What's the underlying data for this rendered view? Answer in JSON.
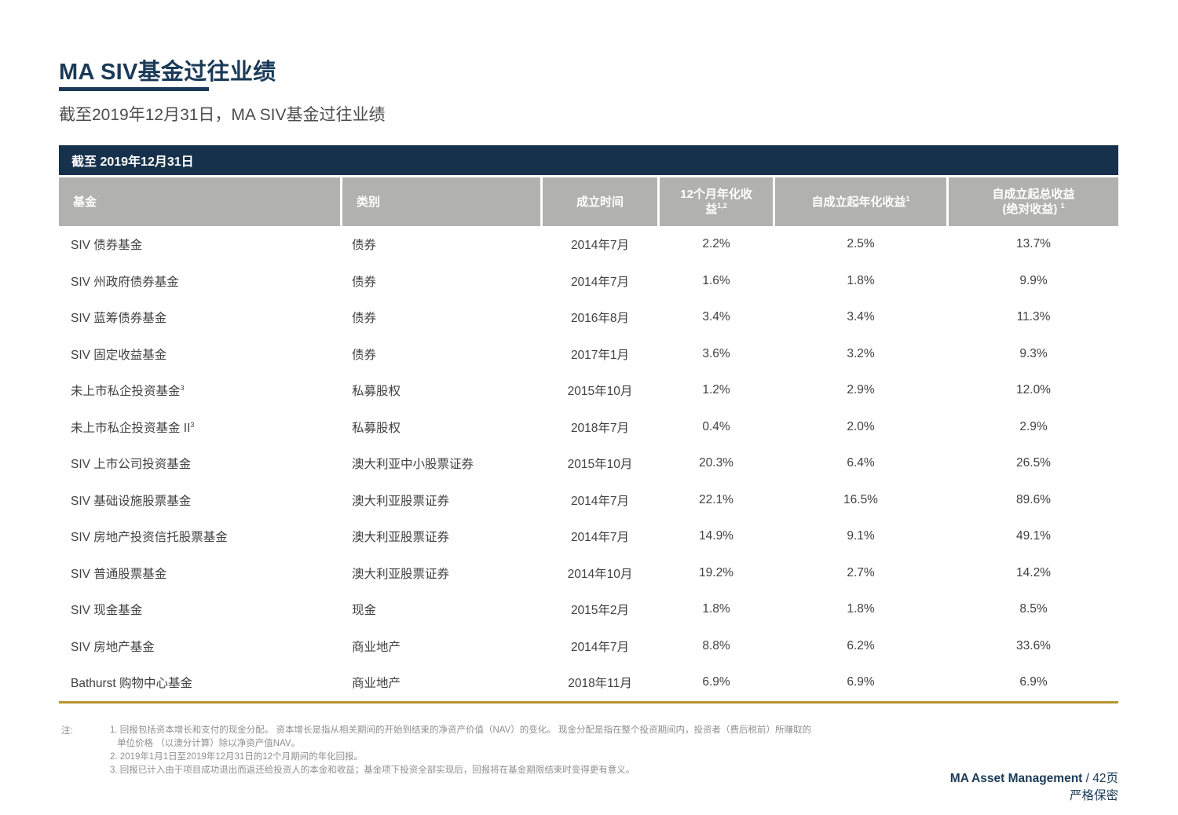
{
  "page": {
    "title": "MA SIV基金过往业绩",
    "subtitle": "截至2019年12月31日，MA SIV基金过往业绩"
  },
  "colors": {
    "navy": "#16314c",
    "header_gray": "#b1b1af",
    "gold_rule": "#b5952f",
    "body_text": "#414141"
  },
  "table": {
    "banner": "截至 2019年12月31日",
    "columns": [
      {
        "line1": "基金",
        "line2": "",
        "sup": ""
      },
      {
        "line1": "类别",
        "line2": "",
        "sup": ""
      },
      {
        "line1": "成立时间",
        "line2": "",
        "sup": ""
      },
      {
        "line1": "12个月年化收",
        "line2": "益",
        "sup": "1,2"
      },
      {
        "line1": "自成立起年化收益",
        "line2": "",
        "sup": "1"
      },
      {
        "line1": "自成立起总收益",
        "line2": "(绝对收益)",
        "sup": "1"
      }
    ],
    "rows": [
      {
        "fund": "SIV 债券基金",
        "fund_sup": "",
        "category": "债券",
        "inception": "2014年7月",
        "m12": "2.2%",
        "ann": "2.5%",
        "total": "13.7%"
      },
      {
        "fund": "SIV 州政府债券基金",
        "fund_sup": "",
        "category": "债券",
        "inception": "2014年7月",
        "m12": "1.6%",
        "ann": "1.8%",
        "total": "9.9%"
      },
      {
        "fund": "SIV 蓝筹债券基金",
        "fund_sup": "",
        "category": "债券",
        "inception": "2016年8月",
        "m12": "3.4%",
        "ann": "3.4%",
        "total": "11.3%"
      },
      {
        "fund": "SIV 固定收益基金",
        "fund_sup": "",
        "category": "债券",
        "inception": "2017年1月",
        "m12": "3.6%",
        "ann": "3.2%",
        "total": "9.3%"
      },
      {
        "fund": "未上市私企投资基金",
        "fund_sup": "3",
        "category": "私募股权",
        "inception": "2015年10月",
        "m12": "1.2%",
        "ann": "2.9%",
        "total": "12.0%"
      },
      {
        "fund": "未上市私企投资基金 II",
        "fund_sup": "3",
        "category": "私募股权",
        "inception": "2018年7月",
        "m12": "0.4%",
        "ann": "2.0%",
        "total": "2.9%"
      },
      {
        "fund": "SIV 上市公司投资基金",
        "fund_sup": "",
        "category": "澳大利亚中小股票证券",
        "inception": "2015年10月",
        "m12": "20.3%",
        "ann": "6.4%",
        "total": "26.5%"
      },
      {
        "fund": "SIV 基础设施股票基金",
        "fund_sup": "",
        "category": "澳大利亚股票证券",
        "inception": "2014年7月",
        "m12": "22.1%",
        "ann": "16.5%",
        "total": "89.6%"
      },
      {
        "fund": "SIV 房地产投资信托股票基金",
        "fund_sup": "",
        "category": "澳大利亚股票证券",
        "inception": "2014年7月",
        "m12": "14.9%",
        "ann": "9.1%",
        "total": "49.1%"
      },
      {
        "fund": "SIV 普通股票基金",
        "fund_sup": "",
        "category": "澳大利亚股票证券",
        "inception": "2014年10月",
        "m12": "19.2%",
        "ann": "2.7%",
        "total": "14.2%"
      },
      {
        "fund": "SIV 现金基金",
        "fund_sup": "",
        "category": "现金",
        "inception": "2015年2月",
        "m12": "1.8%",
        "ann": "1.8%",
        "total": "8.5%"
      },
      {
        "fund": "SIV 房地产基金",
        "fund_sup": "",
        "category": "商业地产",
        "inception": "2014年7月",
        "m12": "8.8%",
        "ann": "6.2%",
        "total": "33.6%"
      },
      {
        "fund": "Bathurst 购物中心基金",
        "fund_sup": "",
        "category": "商业地产",
        "inception": "2018年11月",
        "m12": "6.9%",
        "ann": "6.9%",
        "total": "6.9%"
      }
    ]
  },
  "notes": {
    "label": "注:",
    "line1": "1. 回报包括资本增长和支付的现金分配。 资本增长是指从相关期间的开始到结束的净资产价值（NAV）的变化。 现金分配是指在整个投资期间内，投资者（费后税前）所赚取的",
    "line2": "单位价格 （以澳分计算）除以净资产值NAV。",
    "line3": "2. 2019年1月1日至2019年12月31日的12个月期间的年化回报。",
    "line4": "3. 回报已计入由于项目成功退出而返还给投资人的本金和收益；基金项下投资全部实现后，回报将在基金期限结束时变得更有意义。"
  },
  "footer": {
    "brand": "MA Asset Management",
    "page_suffix": " / 42页",
    "confidential": "严格保密"
  }
}
